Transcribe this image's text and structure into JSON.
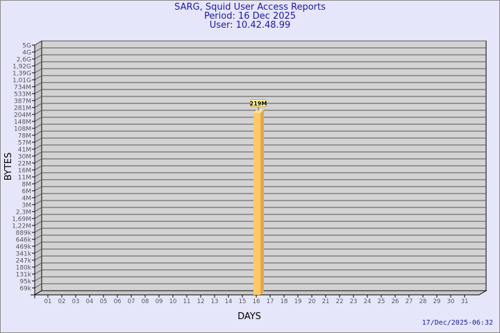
{
  "header": {
    "title": "SARG, Squid User Access Reports",
    "period": "Period: 16 Dec 2025",
    "user": "User: 10.42.48.99"
  },
  "footer": {
    "timestamp": "17/Dec/2025-06:32"
  },
  "chart_data": {
    "type": "bar",
    "xlabel": "DAYS",
    "ylabel": "BYTES",
    "y_scale": "log",
    "y_tick_labels": [
      "5G",
      "4G",
      "2,6G",
      "1,92G",
      "1,39G",
      "1,01G",
      "734M",
      "533M",
      "387M",
      "281M",
      "204M",
      "148M",
      "108M",
      "78M",
      "57M",
      "41M",
      "30M",
      "22M",
      "16M",
      "11M",
      "8M",
      "6M",
      "4M",
      "3M",
      "2,3M",
      "1,69M",
      "1,22M",
      "889k",
      "646k",
      "469k",
      "341k",
      "247k",
      "180k",
      "131k",
      "95k",
      "69k"
    ],
    "categories": [
      "01",
      "02",
      "03",
      "04",
      "05",
      "06",
      "07",
      "08",
      "09",
      "10",
      "11",
      "12",
      "13",
      "14",
      "15",
      "16",
      "17",
      "18",
      "19",
      "20",
      "21",
      "22",
      "23",
      "24",
      "25",
      "26",
      "27",
      "28",
      "29",
      "30",
      "31"
    ],
    "values": [
      null,
      null,
      null,
      null,
      null,
      null,
      null,
      null,
      null,
      null,
      null,
      null,
      null,
      null,
      null,
      "219M",
      null,
      null,
      null,
      null,
      null,
      null,
      null,
      null,
      null,
      null,
      null,
      null,
      null,
      null,
      null
    ],
    "grid": true,
    "colors": {
      "bar": "#ffc966",
      "bar_side": "#e0a850",
      "plot": "#d3d3d3",
      "background": "#e6e6fa",
      "title": "#1a1a9a"
    }
  }
}
